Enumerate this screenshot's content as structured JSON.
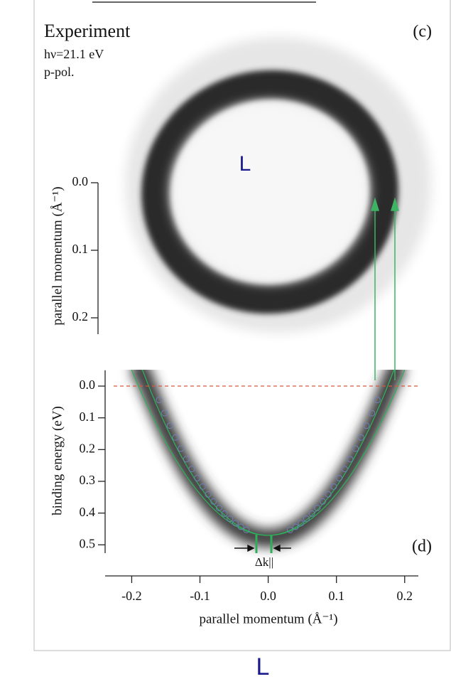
{
  "chart_data": [
    {
      "type": "image",
      "title": "Experiment",
      "subtitle": "hν=21.1 eV",
      "note": "p-pol.",
      "panel": "(c)",
      "marker": "L",
      "y_label": "parallel momentum (Å⁻¹)",
      "ylim": [
        0.0,
        0.2
      ],
      "yticks": [
        {
          "value": 0.0,
          "label": "0.0"
        },
        {
          "value": 0.1,
          "label": "0.1"
        },
        {
          "value": 0.2,
          "label": "0.2"
        }
      ]
    },
    {
      "type": "image",
      "panel": "(d)",
      "annotation": "Δk||",
      "x_label": "parallel momentum (Å⁻¹)",
      "y_label": "binding energy (eV)",
      "xlim": [
        -0.24,
        0.22
      ],
      "ylim": [
        -0.05,
        0.55
      ],
      "xticks": [
        -0.2,
        -0.1,
        {
          "value": 0.0,
          "label": "0.0"
        },
        0.1,
        0.2
      ],
      "yticks": [
        {
          "value": 0.0,
          "label": "0.0"
        },
        {
          "value": 0.1,
          "label": "0.1"
        },
        {
          "value": 0.2,
          "label": "0.2"
        },
        {
          "value": 0.3,
          "label": "0.3"
        },
        {
          "value": 0.4,
          "label": "0.4"
        },
        {
          "value": 0.5,
          "label": "0.5"
        }
      ]
    }
  ],
  "footer": "L"
}
